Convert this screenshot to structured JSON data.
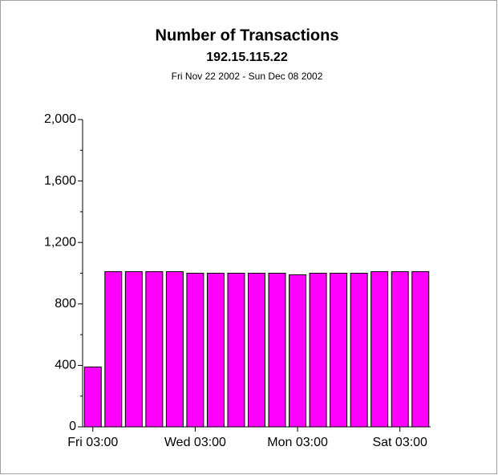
{
  "chart_data": {
    "type": "bar",
    "title": "Number of Transactions",
    "subtitle": "192.15.115.22",
    "date_range": "Fri Nov 22 2002 - Sun Dec 08 2002",
    "categories": [
      "Fri 03:00",
      null,
      null,
      null,
      null,
      "Wed 03:00",
      null,
      null,
      null,
      null,
      "Mon 03:00",
      null,
      null,
      null,
      null,
      "Sat 03:00",
      null
    ],
    "values": [
      390,
      1010,
      1010,
      1010,
      1010,
      1000,
      1000,
      1000,
      1000,
      1000,
      990,
      1000,
      1000,
      1000,
      1010,
      1010,
      1010
    ],
    "color": "#ff00ff",
    "ylim": [
      0,
      2000
    ],
    "yticks": [
      0,
      400,
      800,
      {
        "value": 1200,
        "label": "1,200"
      },
      {
        "value": 1600,
        "label": "1,600"
      },
      {
        "value": 2000,
        "label": "2,000"
      }
    ],
    "yminorticks": [
      200,
      600,
      1000,
      1400,
      1800
    ],
    "grid": false
  }
}
